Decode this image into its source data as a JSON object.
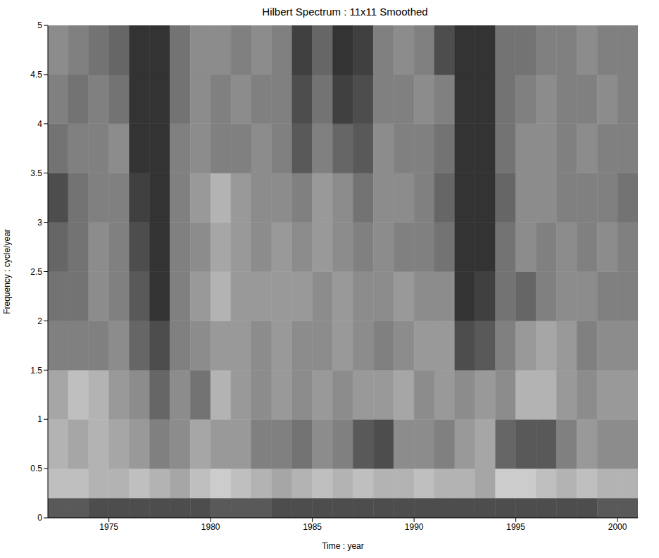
{
  "chart_data": {
    "type": "heatmap",
    "title": "Hilbert Spectrum : 11x11 Smoothed",
    "x_label": "Time : year",
    "y_label": "Frequency : cycle/year",
    "xlim": [
      1972,
      2001
    ],
    "xticks": [
      1975,
      1980,
      1985,
      1990,
      1995,
      2000
    ],
    "ylim": [
      0,
      5
    ],
    "yticks": [
      0,
      0.5,
      1,
      1.5,
      2,
      2.5,
      3,
      3.5,
      4,
      4.5,
      5
    ],
    "x_bins": [
      1972,
      1973,
      1974,
      1975,
      1976,
      1977,
      1978,
      1979,
      1980,
      1981,
      1982,
      1983,
      1984,
      1985,
      1986,
      1987,
      1988,
      1989,
      1990,
      1991,
      1992,
      1993,
      1994,
      1995,
      1996,
      1997,
      1998,
      1999,
      2000,
      2001
    ],
    "y_bins": [
      0,
      0.2,
      0.5,
      1,
      1.5,
      2,
      2.5,
      3,
      3.5,
      4,
      4.5,
      5
    ],
    "cells": [
      [
        0.35,
        0.35,
        0.3,
        0.3,
        0.3,
        0.3,
        0.3,
        0.3,
        0.35,
        0.35,
        0.35,
        0.3,
        0.3,
        0.3,
        0.3,
        0.3,
        0.3,
        0.3,
        0.3,
        0.3,
        0.3,
        0.3,
        0.3,
        0.3,
        0.3,
        0.3,
        0.3,
        0.35,
        0.35
      ],
      [
        0.75,
        0.75,
        0.7,
        0.7,
        0.75,
        0.7,
        0.65,
        0.75,
        0.8,
        0.75,
        0.7,
        0.65,
        0.7,
        0.75,
        0.7,
        0.75,
        0.7,
        0.7,
        0.75,
        0.7,
        0.7,
        0.65,
        0.8,
        0.8,
        0.75,
        0.7,
        0.75,
        0.7,
        0.7
      ],
      [
        0.7,
        0.65,
        0.7,
        0.65,
        0.6,
        0.5,
        0.55,
        0.65,
        0.6,
        0.6,
        0.5,
        0.5,
        0.45,
        0.55,
        0.5,
        0.35,
        0.3,
        0.55,
        0.55,
        0.5,
        0.6,
        0.65,
        0.4,
        0.35,
        0.35,
        0.5,
        0.6,
        0.55,
        0.55
      ],
      [
        0.65,
        0.75,
        0.7,
        0.6,
        0.55,
        0.4,
        0.55,
        0.45,
        0.7,
        0.6,
        0.55,
        0.6,
        0.55,
        0.6,
        0.55,
        0.6,
        0.6,
        0.65,
        0.55,
        0.6,
        0.55,
        0.6,
        0.55,
        0.7,
        0.7,
        0.6,
        0.55,
        0.6,
        0.6
      ],
      [
        0.5,
        0.5,
        0.5,
        0.55,
        0.4,
        0.3,
        0.5,
        0.55,
        0.6,
        0.6,
        0.55,
        0.6,
        0.55,
        0.55,
        0.6,
        0.55,
        0.5,
        0.55,
        0.6,
        0.6,
        0.3,
        0.35,
        0.5,
        0.6,
        0.65,
        0.6,
        0.5,
        0.55,
        0.55
      ],
      [
        0.45,
        0.45,
        0.55,
        0.5,
        0.35,
        0.2,
        0.5,
        0.6,
        0.7,
        0.6,
        0.6,
        0.6,
        0.6,
        0.55,
        0.6,
        0.55,
        0.55,
        0.6,
        0.55,
        0.55,
        0.2,
        0.25,
        0.45,
        0.4,
        0.5,
        0.55,
        0.55,
        0.5,
        0.5
      ],
      [
        0.4,
        0.45,
        0.55,
        0.5,
        0.3,
        0.2,
        0.5,
        0.55,
        0.65,
        0.6,
        0.55,
        0.6,
        0.55,
        0.6,
        0.55,
        0.5,
        0.55,
        0.5,
        0.5,
        0.45,
        0.2,
        0.2,
        0.45,
        0.55,
        0.5,
        0.55,
        0.5,
        0.55,
        0.5
      ],
      [
        0.3,
        0.45,
        0.5,
        0.5,
        0.25,
        0.2,
        0.5,
        0.6,
        0.7,
        0.6,
        0.55,
        0.55,
        0.5,
        0.6,
        0.55,
        0.45,
        0.55,
        0.55,
        0.5,
        0.4,
        0.2,
        0.2,
        0.4,
        0.55,
        0.55,
        0.5,
        0.5,
        0.5,
        0.45
      ],
      [
        0.45,
        0.5,
        0.5,
        0.55,
        0.2,
        0.2,
        0.5,
        0.55,
        0.5,
        0.5,
        0.55,
        0.5,
        0.35,
        0.5,
        0.4,
        0.35,
        0.55,
        0.5,
        0.5,
        0.45,
        0.2,
        0.2,
        0.45,
        0.55,
        0.55,
        0.5,
        0.55,
        0.5,
        0.5
      ],
      [
        0.5,
        0.45,
        0.5,
        0.45,
        0.2,
        0.2,
        0.45,
        0.55,
        0.5,
        0.55,
        0.5,
        0.5,
        0.3,
        0.45,
        0.25,
        0.3,
        0.5,
        0.5,
        0.55,
        0.5,
        0.2,
        0.2,
        0.45,
        0.5,
        0.55,
        0.5,
        0.5,
        0.55,
        0.5
      ],
      [
        0.55,
        0.5,
        0.45,
        0.4,
        0.2,
        0.2,
        0.45,
        0.55,
        0.55,
        0.5,
        0.55,
        0.5,
        0.25,
        0.4,
        0.2,
        0.25,
        0.5,
        0.55,
        0.5,
        0.3,
        0.2,
        0.2,
        0.45,
        0.45,
        0.5,
        0.5,
        0.55,
        0.5,
        0.5
      ]
    ]
  }
}
